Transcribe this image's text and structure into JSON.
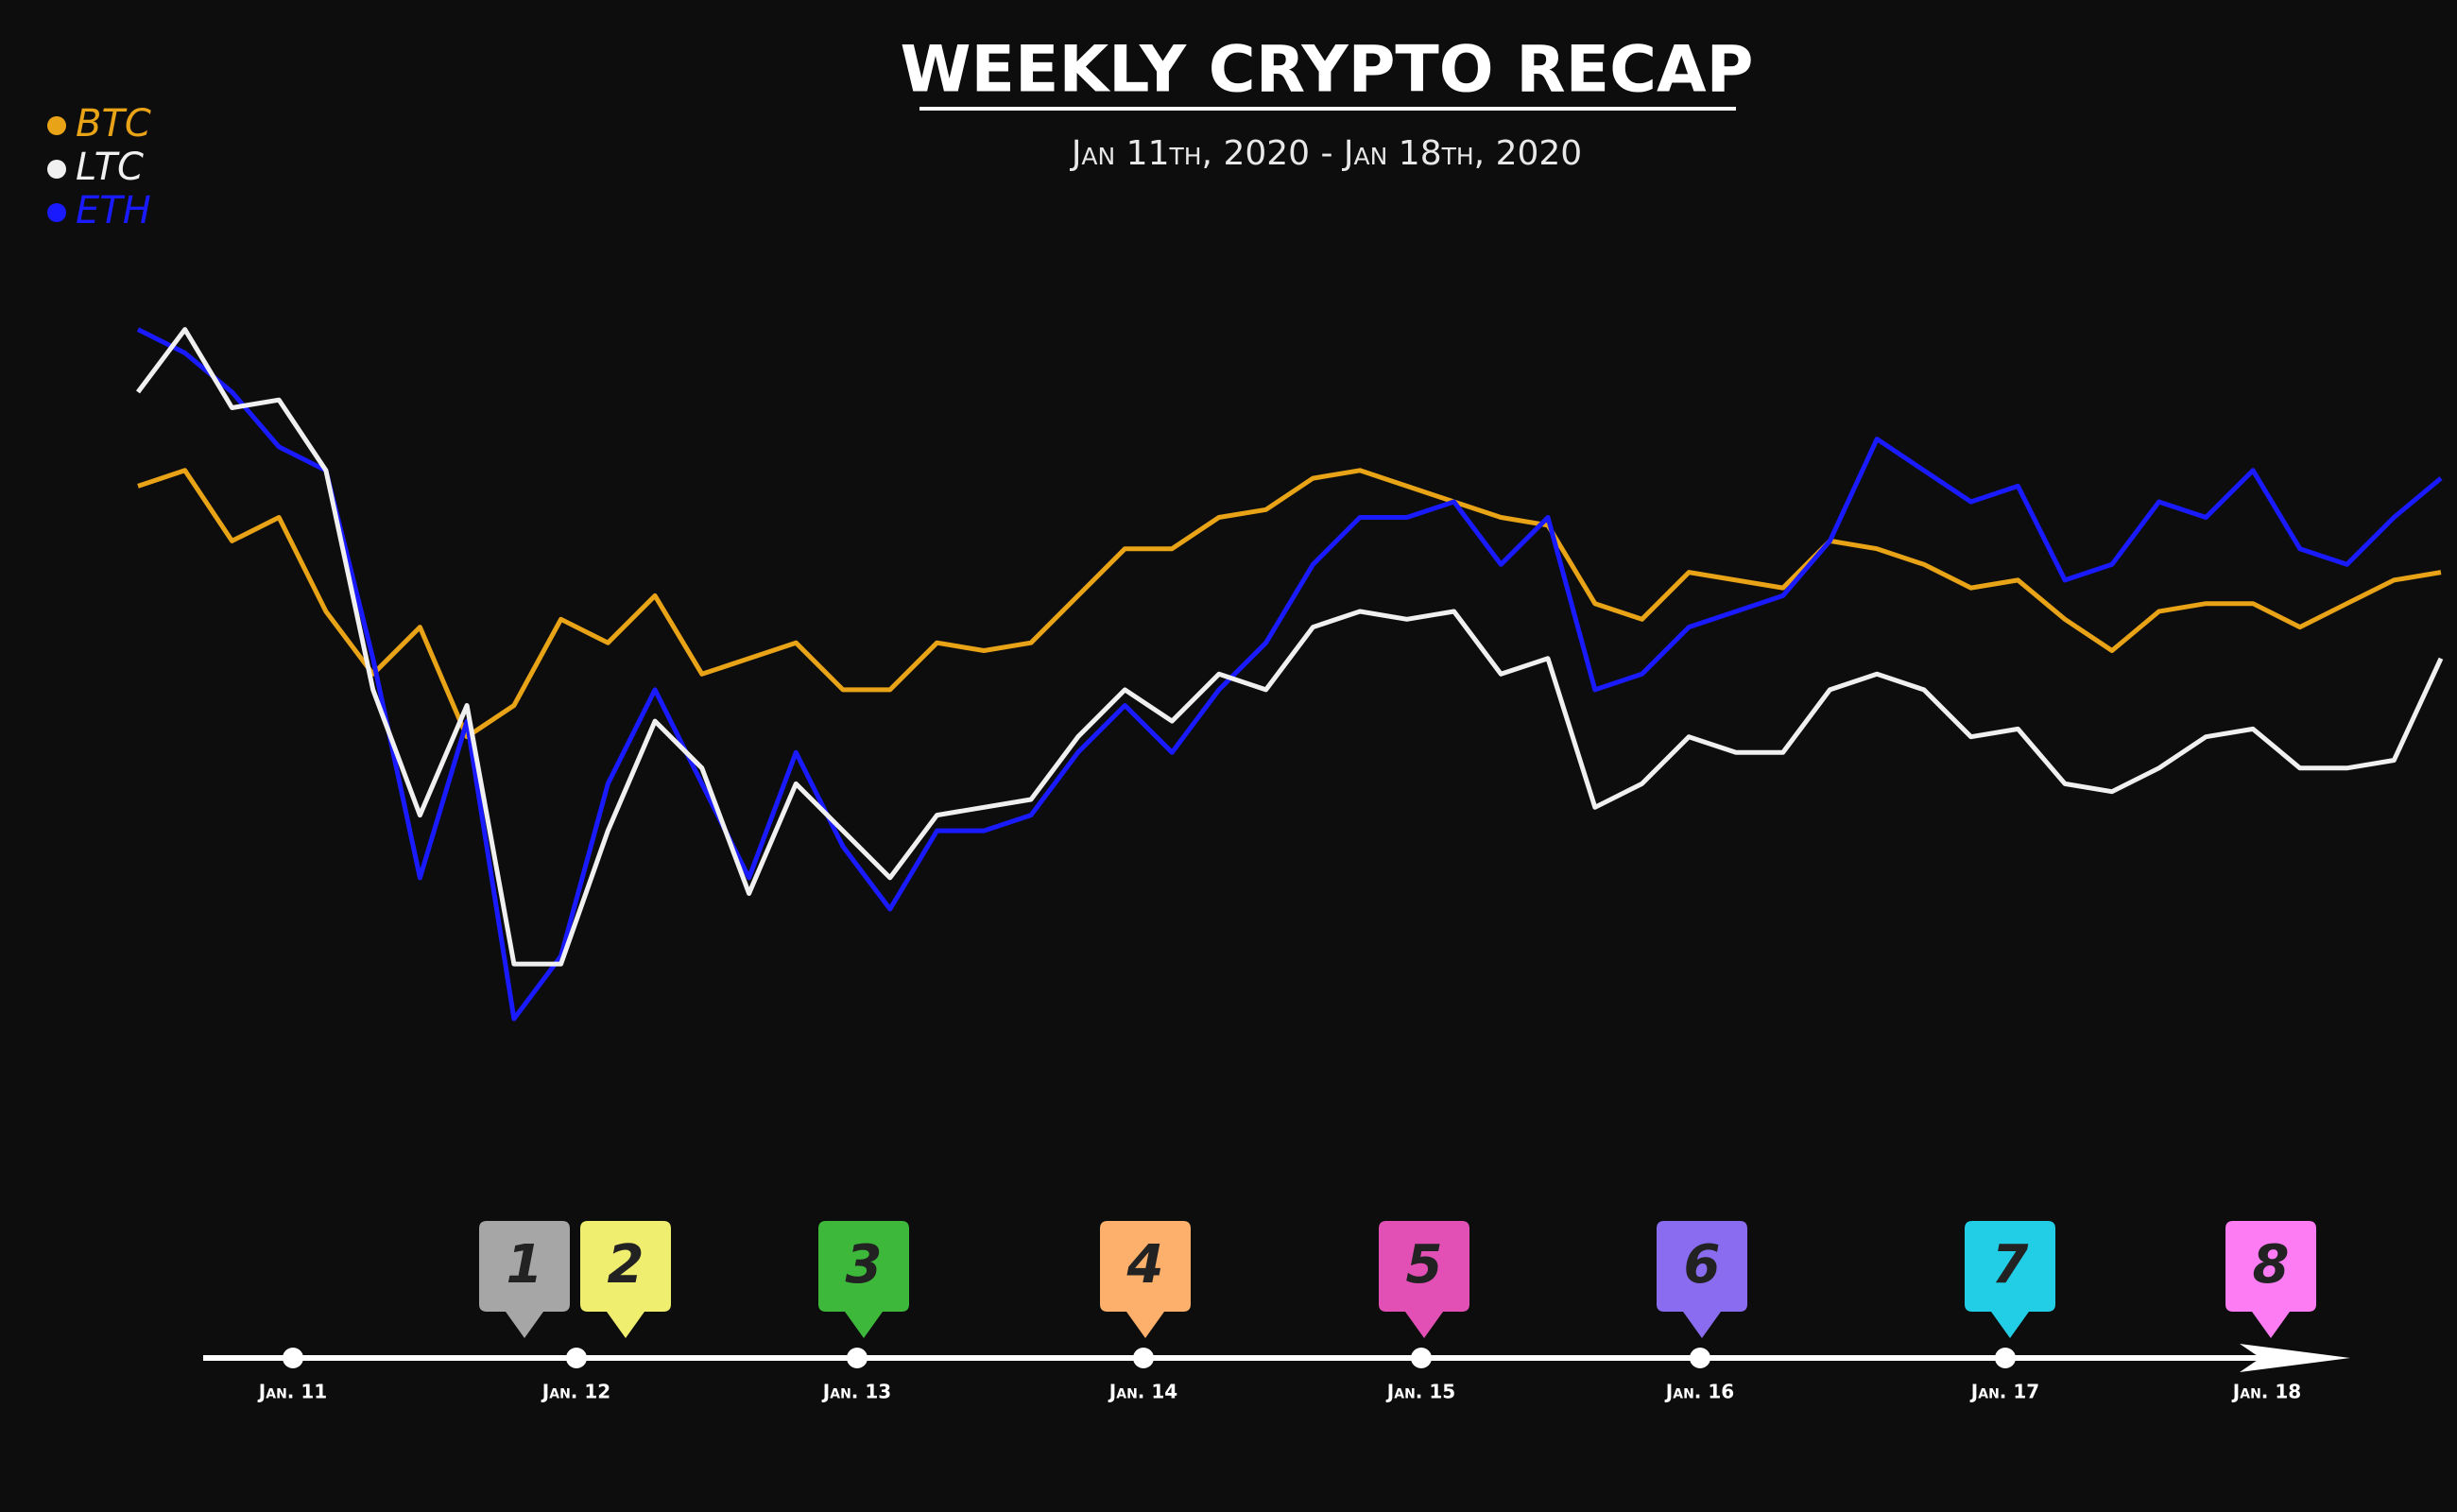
{
  "chart_data": {
    "type": "line",
    "title": "WEEKLY CRYPTO RECAP",
    "subtitle": "Jan 11th, 2020 - Jan 18th, 2020",
    "series": [
      {
        "name": "BTC",
        "color": "#e8a317",
        "values": [
          78,
          80,
          71,
          74,
          62,
          54,
          60,
          46,
          50,
          61,
          58,
          64,
          54,
          56,
          58,
          52,
          52,
          58,
          57,
          58,
          64,
          70,
          70,
          74,
          75,
          79,
          80,
          78,
          76,
          74,
          73,
          63,
          61,
          67,
          66,
          65,
          71,
          70,
          68,
          65,
          66,
          61,
          57,
          62,
          63,
          63,
          60,
          63,
          66,
          67
        ]
      },
      {
        "name": "LTC",
        "color": "#f0f0f0",
        "values": [
          90,
          98,
          88,
          89,
          80,
          52,
          36,
          50,
          17,
          17,
          34,
          48,
          42,
          26,
          40,
          34,
          28,
          36,
          37,
          38,
          46,
          52,
          48,
          54,
          52,
          60,
          62,
          61,
          62,
          54,
          56,
          37,
          40,
          46,
          44,
          44,
          52,
          54,
          52,
          46,
          47,
          40,
          39,
          42,
          46,
          47,
          42,
          42,
          43,
          56
        ]
      },
      {
        "name": "ETH",
        "color": "#1a1aff",
        "values": [
          98,
          95,
          90,
          83,
          80,
          56,
          28,
          48,
          10,
          18,
          40,
          52,
          40,
          28,
          44,
          32,
          24,
          34,
          34,
          36,
          44,
          50,
          44,
          52,
          58,
          68,
          74,
          74,
          76,
          68,
          74,
          52,
          54,
          60,
          62,
          64,
          71,
          84,
          80,
          76,
          78,
          66,
          68,
          76,
          74,
          80,
          70,
          68,
          74,
          79
        ]
      }
    ],
    "ylim": [
      0,
      100
    ],
    "timeline": {
      "labels": [
        "Jan. 11",
        "Jan. 12",
        "Jan. 13",
        "Jan. 14",
        "Jan. 15",
        "Jan. 16",
        "Jan. 17",
        "Jan. 18"
      ]
    },
    "markers": {
      "labels": [
        "1",
        "2",
        "3",
        "4",
        "5",
        "6",
        "7",
        "8"
      ],
      "colors": [
        "#a6a6a6",
        "#f0ee6e",
        "#3db83a",
        "#fdb06b",
        "#e350b5",
        "#8a6cf0",
        "#22cde6",
        "#fd7cf4"
      ]
    }
  }
}
